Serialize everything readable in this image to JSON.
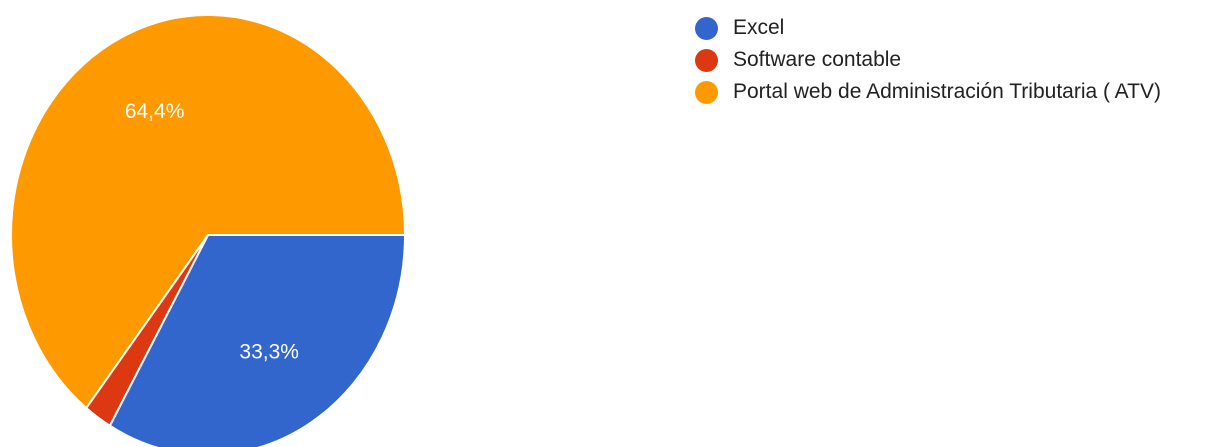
{
  "chart_data": {
    "type": "pie",
    "categories": [
      "Excel",
      "Software contable",
      "Portal web de Administración Tributaria ( ATV)"
    ],
    "values": [
      33.3,
      2.3,
      64.4
    ],
    "value_labels": [
      "33,3%",
      null,
      "64,4%"
    ],
    "colors": [
      "#3366cc",
      "#dc3912",
      "#ff9900"
    ],
    "legend": "right"
  }
}
